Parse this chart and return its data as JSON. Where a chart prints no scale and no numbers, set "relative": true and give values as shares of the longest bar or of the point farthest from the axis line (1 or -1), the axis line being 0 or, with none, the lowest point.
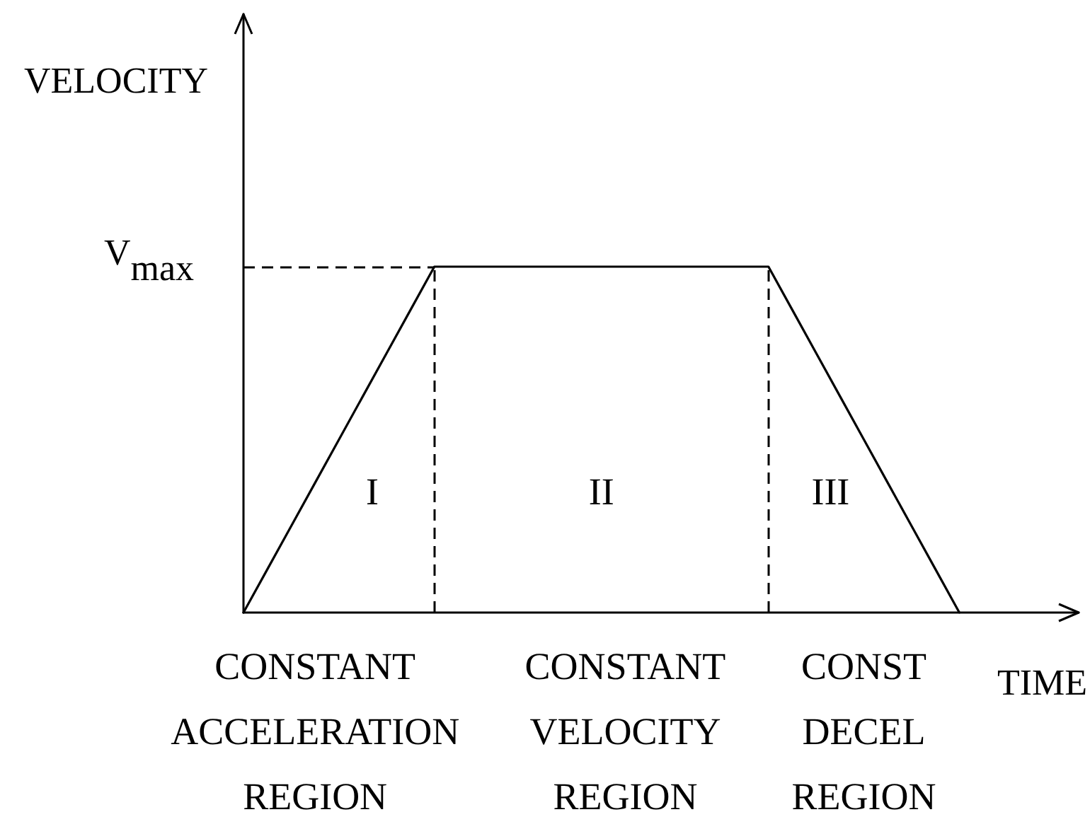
{
  "chart_data": {
    "type": "line",
    "xlabel": "TIME",
    "ylabel": "VELOCITY",
    "relative": true,
    "categories": [
      null,
      null,
      null,
      "CONSTANT ACCELERATION REGION",
      null,
      null,
      null,
      null,
      null,
      null,
      null,
      null,
      null,
      null,
      null,
      null,
      "CONSTANT VELOCITY REGION",
      null,
      null,
      null,
      null,
      null,
      null,
      null,
      null,
      null,
      "CONST DECEL REGION",
      null,
      null,
      null,
      null,
      null,
      null,
      null,
      null,
      null
    ],
    "series": [
      {
        "color": "#000000",
        "values": [
          0,
          0.125,
          0.25,
          0.375,
          0.5,
          0.625,
          0.75,
          0.875,
          1,
          1,
          1,
          1,
          1,
          1,
          1,
          1,
          1,
          1,
          1,
          1,
          1,
          1,
          1,
          0.875,
          0.75,
          0.625,
          0.5,
          0.375,
          0.25,
          0.125,
          0,
          null,
          null,
          null,
          null,
          null
        ]
      }
    ],
    "marker": "none",
    "line_style": "solid",
    "ref_lines": [
      {
        "axis": "y",
        "value": 1,
        "label": "V$_{max}$",
        "line_style": "dashed",
        "color": "#000000"
      }
    ],
    "annotations": [
      "I",
      "II",
      "III"
    ]
  }
}
